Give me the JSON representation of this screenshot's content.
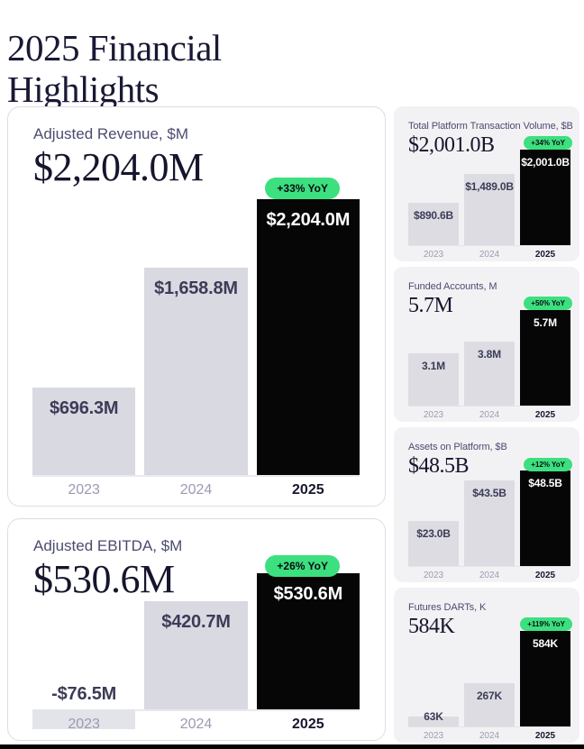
{
  "page": {
    "title": "2025 Financial Highlights",
    "accent_green": "#3ce07e",
    "bar_grey": "#d9d9e1",
    "bar_black": "#060606"
  },
  "chart_data": [
    {
      "id": "adjusted-revenue",
      "type": "bar",
      "size": "large",
      "title": "Adjusted Revenue, $M",
      "headline": "$2,204.0M",
      "yoy": "+33% YoY",
      "categories": [
        "2023",
        "2024",
        "2025"
      ],
      "values": [
        696.3,
        1658.8,
        2204.0
      ],
      "labels": [
        "$696.3M",
        "$1,658.8M",
        "$2,204.0M"
      ],
      "ylim": [
        0,
        2204.0
      ]
    },
    {
      "id": "adjusted-ebitda",
      "type": "bar",
      "size": "large",
      "title": "Adjusted EBITDA, $M",
      "headline": "$530.6M",
      "yoy": "+26% YoY",
      "categories": [
        "2023",
        "2024",
        "2025"
      ],
      "values": [
        -76.5,
        420.7,
        530.6
      ],
      "labels": [
        "-$76.5M",
        "$420.7M",
        "$530.6M"
      ],
      "ylim": [
        -76.5,
        530.6
      ]
    },
    {
      "id": "total-platform-transaction-volume",
      "type": "bar",
      "size": "small",
      "title": "Total Platform Transaction Volume, $B",
      "headline": "$2,001.0B",
      "yoy": "+34% YoY",
      "categories": [
        "2023",
        "2024",
        "2025"
      ],
      "values": [
        890.6,
        1489.0,
        2001.0
      ],
      "labels": [
        "$890.6B",
        "$1,489.0B",
        "$2,001.0B"
      ],
      "ylim": [
        0,
        2001.0
      ]
    },
    {
      "id": "funded-accounts",
      "type": "bar",
      "size": "small",
      "title": "Funded Accounts, M",
      "headline": "5.7M",
      "yoy": "+50% YoY",
      "categories": [
        "2023",
        "2024",
        "2025"
      ],
      "values": [
        3.1,
        3.8,
        5.7
      ],
      "labels": [
        "3.1M",
        "3.8M",
        "5.7M"
      ],
      "ylim": [
        0,
        5.7
      ]
    },
    {
      "id": "assets-on-platform",
      "type": "bar",
      "size": "small",
      "title": "Assets on Platform, $B",
      "headline": "$48.5B",
      "yoy": "+12% YoY",
      "categories": [
        "2023",
        "2024",
        "2025"
      ],
      "values": [
        23.0,
        43.5,
        48.5
      ],
      "labels": [
        "$23.0B",
        "$43.5B",
        "$48.5B"
      ],
      "ylim": [
        0,
        48.5
      ]
    },
    {
      "id": "futures-darts",
      "type": "bar",
      "size": "small",
      "title": "Futures DARTs, K",
      "headline": "584K",
      "yoy": "+119% YoY",
      "categories": [
        "2023",
        "2024",
        "2025"
      ],
      "values": [
        63,
        267,
        584
      ],
      "labels": [
        "63K",
        "267K",
        "584K"
      ],
      "ylim": [
        0,
        584
      ]
    }
  ]
}
